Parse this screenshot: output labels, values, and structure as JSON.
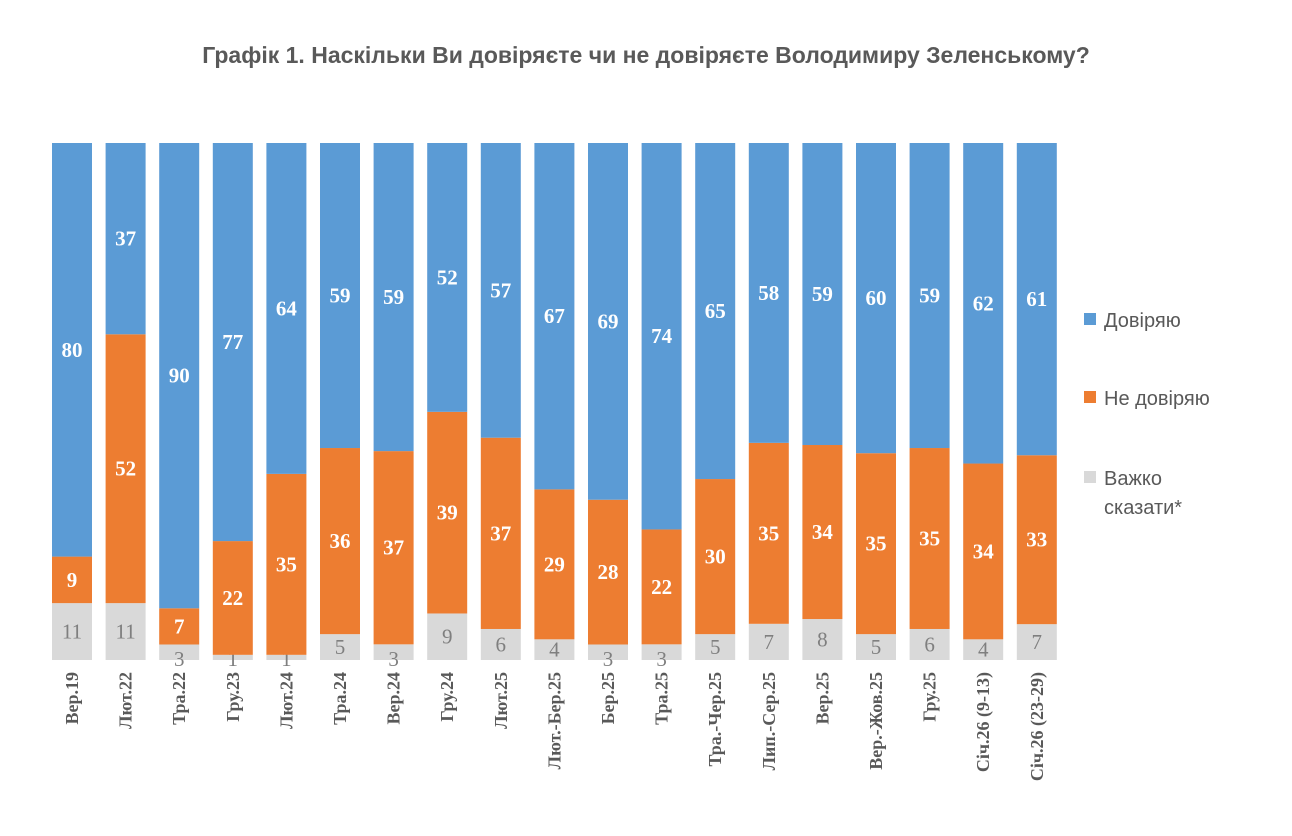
{
  "chart_data": {
    "type": "bar",
    "stacked": true,
    "title": "Графік 1. Наскільки Ви довіряєте чи не довіряєте Володимиру Зеленському?",
    "categories": [
      "Вер.19",
      "Лют.22",
      "Тра.22",
      "Гру.23",
      "Лют.24",
      "Тра.24",
      "Вер.24",
      "Гру.24",
      "Лют.25",
      "Лют.-Бер.25",
      "Бер.25",
      "Тра.25",
      "Тра.-Чер.25",
      "Лип.-Сер.25",
      "Вер.25",
      "Вер.-Жов.25",
      "Гру.25",
      "Січ.26 (9-13)",
      "Січ.26 (23-29)"
    ],
    "series": [
      {
        "name": "Довіряю",
        "color": "#5b9bd5",
        "values": [
          80,
          37,
          90,
          77,
          64,
          59,
          59,
          52,
          57,
          67,
          69,
          74,
          65,
          58,
          59,
          60,
          59,
          62,
          61
        ]
      },
      {
        "name": "Не довіряю",
        "color": "#ed7d31",
        "values": [
          9,
          52,
          7,
          22,
          35,
          36,
          37,
          39,
          37,
          29,
          28,
          22,
          30,
          35,
          34,
          35,
          35,
          34,
          33
        ]
      },
      {
        "name": "Важко сказати*",
        "color": "#d9d9d9",
        "values": [
          11,
          11,
          3,
          1,
          1,
          5,
          3,
          9,
          6,
          4,
          3,
          3,
          5,
          7,
          8,
          5,
          6,
          4,
          7
        ]
      }
    ],
    "legend_position": "right",
    "grid": false,
    "ylim": [
      0,
      100
    ]
  }
}
